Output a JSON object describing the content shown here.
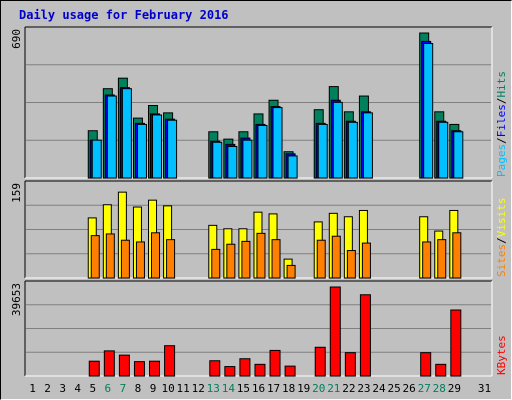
{
  "title": "Daily usage for February 2016",
  "colors": {
    "background": "#c0c0c0",
    "plot_bg": "#c0c0c0",
    "title": "#0000cc",
    "hits": "#00805c",
    "files": "#0000ff",
    "pages": "#00c0ff",
    "visits": "#ffff00",
    "sites": "#ff8000",
    "kbytes": "#ff0000",
    "weekend_label": "#00805c",
    "weekday_label": "#000000",
    "grid": "#808080"
  },
  "chart_data": [
    {
      "type": "bar",
      "name": "hits-files-pages",
      "ymax_label": "690",
      "ylim": [
        0,
        690
      ],
      "legend": [
        {
          "text": "Pages",
          "color": "#00c0ff"
        },
        {
          "text": "/",
          "color": "#000000"
        },
        {
          "text": "Files",
          "color": "#0000ff"
        },
        {
          "text": "/",
          "color": "#000000"
        },
        {
          "text": "Hits",
          "color": "#00805c"
        }
      ],
      "x": [
        1,
        2,
        3,
        4,
        5,
        6,
        7,
        8,
        9,
        10,
        11,
        12,
        13,
        14,
        15,
        16,
        17,
        18,
        19,
        20,
        21,
        22,
        23,
        24,
        25,
        26,
        27,
        28,
        29,
        31
      ],
      "series": [
        {
          "name": "Hits",
          "values": [
            0,
            0,
            0,
            0,
            225,
            425,
            475,
            285,
            345,
            310,
            0,
            0,
            220,
            185,
            220,
            305,
            370,
            125,
            0,
            325,
            435,
            315,
            390,
            0,
            0,
            0,
            690,
            315,
            255,
            0
          ]
        },
        {
          "name": "Files",
          "values": [
            0,
            0,
            0,
            0,
            180,
            395,
            430,
            260,
            305,
            280,
            0,
            0,
            175,
            160,
            190,
            255,
            340,
            115,
            0,
            260,
            370,
            270,
            315,
            0,
            0,
            0,
            650,
            270,
            225,
            0
          ]
        },
        {
          "name": "Pages",
          "values": [
            0,
            0,
            0,
            0,
            180,
            390,
            425,
            255,
            300,
            275,
            0,
            0,
            170,
            150,
            180,
            250,
            335,
            105,
            0,
            255,
            360,
            265,
            310,
            0,
            0,
            0,
            640,
            265,
            220,
            0
          ]
        }
      ]
    },
    {
      "type": "bar",
      "name": "visits-sites",
      "ymax_label": "159",
      "ylim": [
        0,
        159
      ],
      "legend": [
        {
          "text": "Sites",
          "color": "#ff8000"
        },
        {
          "text": "/",
          "color": "#000000"
        },
        {
          "text": "Visits",
          "color": "#ffff00"
        }
      ],
      "series": [
        {
          "name": "Visits",
          "values": [
            0,
            0,
            0,
            0,
            105,
            128,
            150,
            124,
            136,
            126,
            0,
            0,
            92,
            86,
            86,
            115,
            112,
            33,
            0,
            98,
            113,
            107,
            118,
            0,
            0,
            0,
            107,
            82,
            118,
            0
          ]
        },
        {
          "name": "Sites",
          "values": [
            0,
            0,
            0,
            0,
            74,
            77,
            66,
            63,
            79,
            67,
            0,
            0,
            50,
            59,
            64,
            78,
            67,
            22,
            0,
            66,
            73,
            48,
            61,
            0,
            0,
            0,
            63,
            67,
            79,
            0
          ]
        }
      ]
    },
    {
      "type": "bar",
      "name": "kbytes",
      "ymax_label": "39653",
      "ylim": [
        0,
        39653
      ],
      "legend": [
        {
          "text": "KBytes",
          "color": "#ff0000"
        }
      ],
      "series": [
        {
          "name": "KBytes",
          "values": [
            0,
            0,
            0,
            0,
            6600,
            11200,
            9300,
            6400,
            6600,
            13500,
            0,
            0,
            6800,
            4200,
            7700,
            5200,
            11400,
            4400,
            0,
            12800,
            39653,
            10400,
            36200,
            0,
            0,
            0,
            10400,
            5200,
            29400,
            0
          ]
        }
      ]
    }
  ],
  "x_labels": [
    {
      "text": "1",
      "weekend": false
    },
    {
      "text": "2",
      "weekend": false
    },
    {
      "text": "3",
      "weekend": false
    },
    {
      "text": "4",
      "weekend": false
    },
    {
      "text": "5",
      "weekend": false
    },
    {
      "text": "6",
      "weekend": true
    },
    {
      "text": "7",
      "weekend": true
    },
    {
      "text": "8",
      "weekend": false
    },
    {
      "text": "9",
      "weekend": false
    },
    {
      "text": "10",
      "weekend": false
    },
    {
      "text": "11",
      "weekend": false
    },
    {
      "text": "12",
      "weekend": false
    },
    {
      "text": "13",
      "weekend": true
    },
    {
      "text": "14",
      "weekend": true
    },
    {
      "text": "15",
      "weekend": false
    },
    {
      "text": "16",
      "weekend": false
    },
    {
      "text": "17",
      "weekend": false
    },
    {
      "text": "18",
      "weekend": false
    },
    {
      "text": "19",
      "weekend": false
    },
    {
      "text": "20",
      "weekend": true
    },
    {
      "text": "21",
      "weekend": true
    },
    {
      "text": "22",
      "weekend": false
    },
    {
      "text": "23",
      "weekend": false
    },
    {
      "text": "24",
      "weekend": false
    },
    {
      "text": "25",
      "weekend": false
    },
    {
      "text": "26",
      "weekend": false
    },
    {
      "text": "27",
      "weekend": true
    },
    {
      "text": "28",
      "weekend": true
    },
    {
      "text": "29",
      "weekend": false
    },
    {
      "text": "31",
      "weekend": false
    }
  ]
}
